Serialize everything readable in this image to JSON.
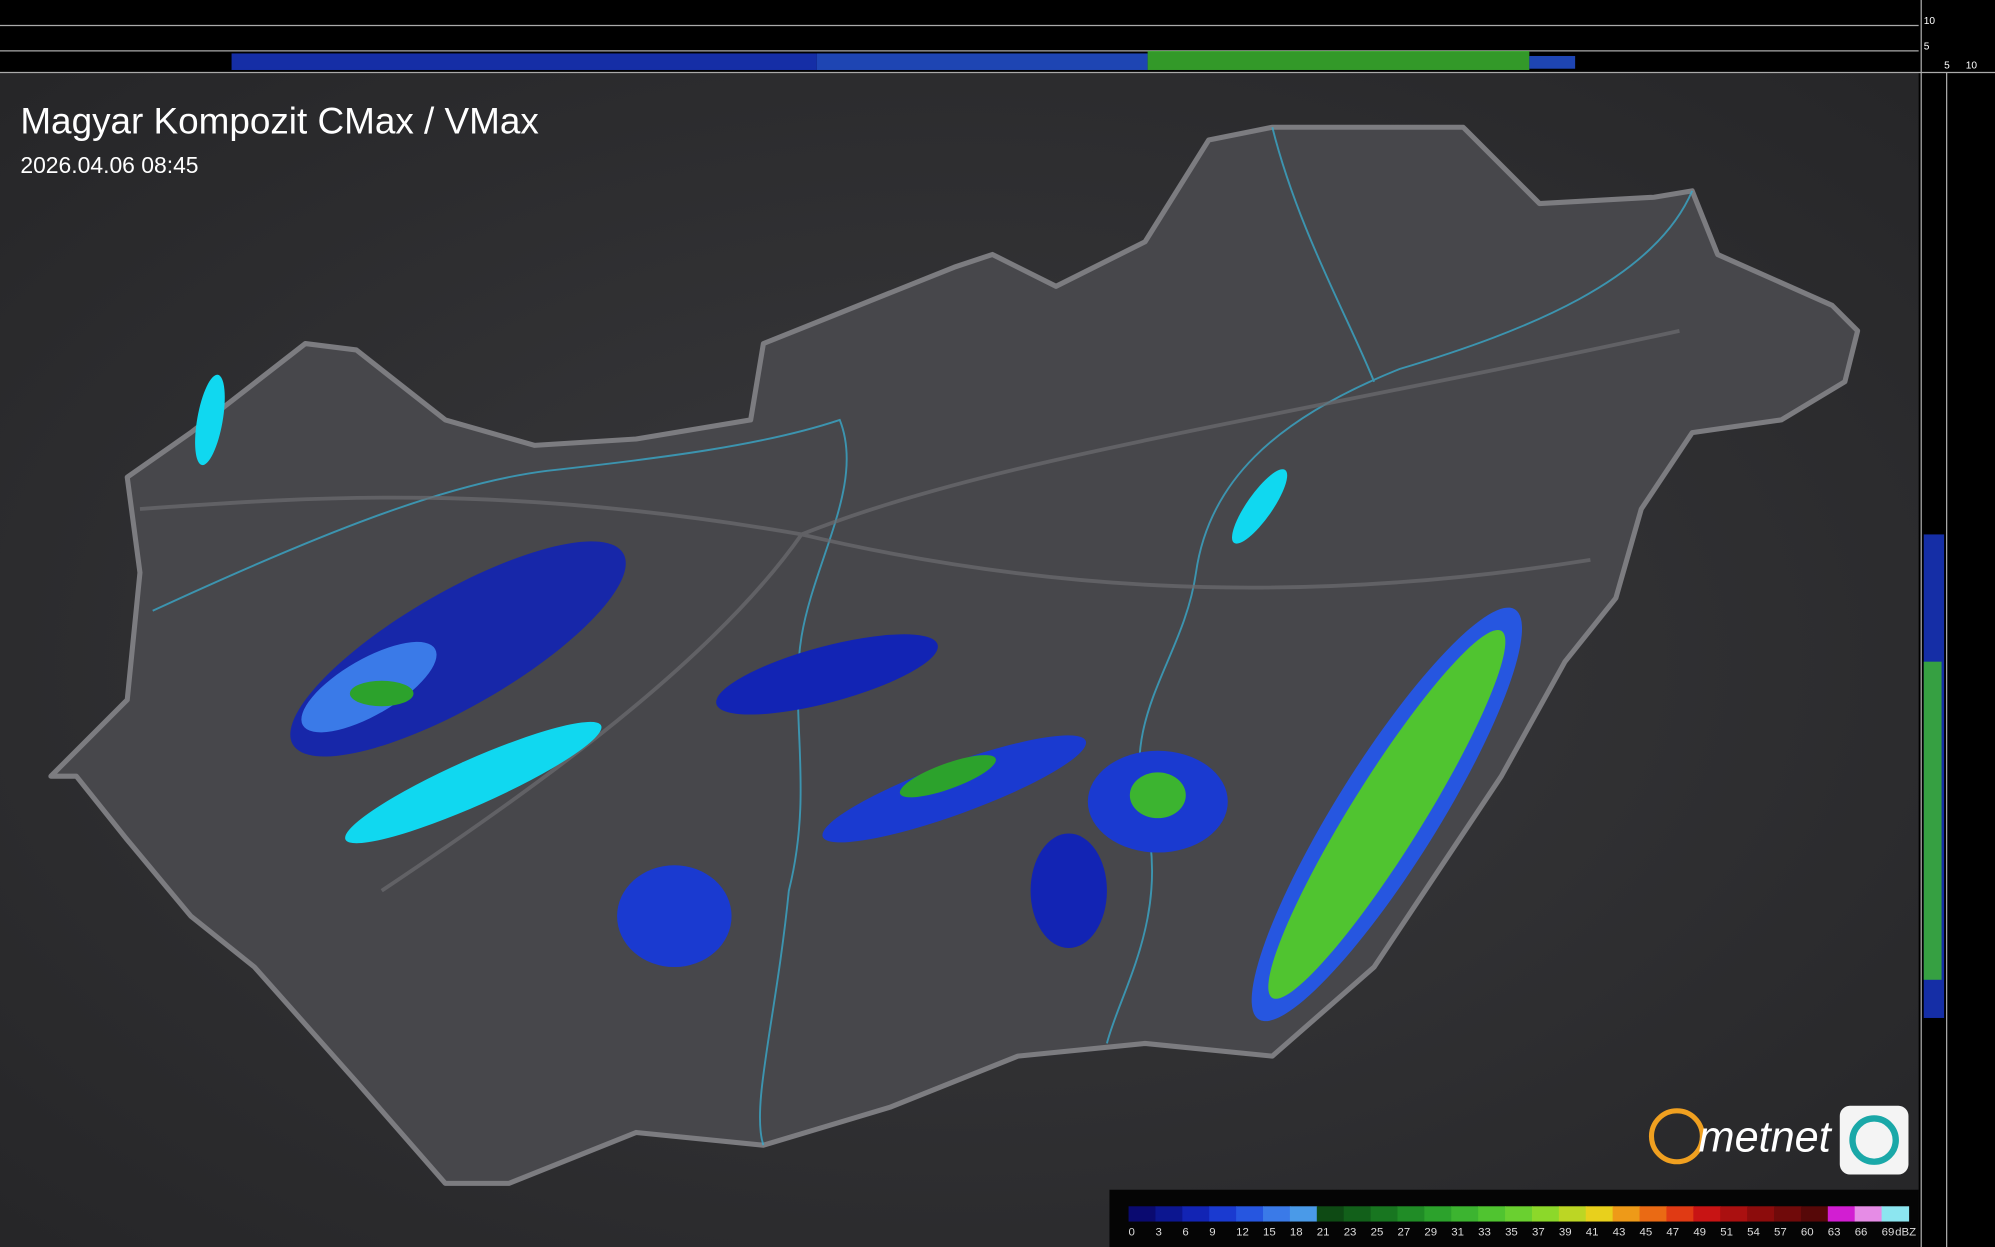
{
  "header": {
    "title": "Magyar Kompozit CMax / VMax",
    "timestamp": "2026.04.06 08:45"
  },
  "side_scale": {
    "top": [
      "10",
      "5"
    ],
    "right": [
      "5",
      "10"
    ]
  },
  "logo": {
    "text": "metnet"
  },
  "legend": {
    "unit": "dBZ",
    "ticks": [
      0,
      3,
      6,
      9,
      12,
      15,
      18,
      21,
      23,
      25,
      27,
      29,
      31,
      33,
      35,
      37,
      39,
      41,
      43,
      45,
      47,
      49,
      51,
      54,
      57,
      60,
      63,
      66,
      69
    ],
    "colors": [
      "#0a0a70",
      "#0c1690",
      "#1224b4",
      "#1a3ad0",
      "#2656e0",
      "#3a7ae8",
      "#4a9ae8",
      "#0e4a14",
      "#12601a",
      "#187620",
      "#208c26",
      "#2ca22c",
      "#3cb430",
      "#50c430",
      "#6ad030",
      "#8cd82a",
      "#bcd624",
      "#e8d01c",
      "#ee9a18",
      "#ea6a14",
      "#e03a14",
      "#c81414",
      "#aa1010",
      "#8c0c0c",
      "#700a0a",
      "#560808",
      "#d21ed2",
      "#e68ce6",
      "#8ce6f0"
    ]
  }
}
